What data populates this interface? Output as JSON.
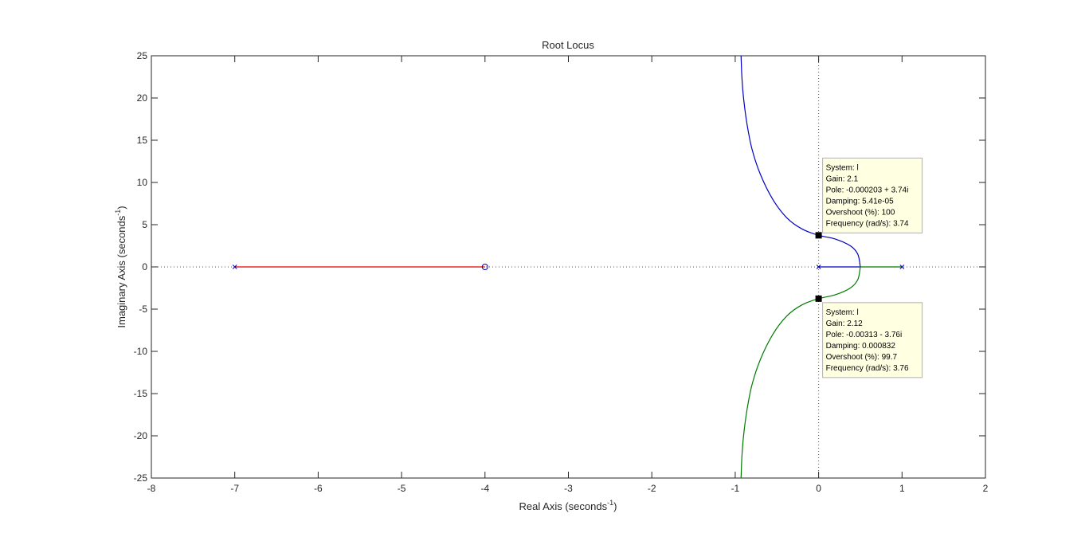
{
  "chart_data": {
    "type": "line",
    "title": "Root Locus",
    "xlabel": "Real Axis (seconds",
    "ylabel": "Imaginary Axis (seconds",
    "unit_superscript": "-1",
    "xlim": [
      -8,
      2
    ],
    "ylim": [
      -25,
      25
    ],
    "xticks": [
      -8,
      -7,
      -6,
      -5,
      -4,
      -3,
      -2,
      -1,
      0,
      1,
      2
    ],
    "yticks": [
      25,
      20,
      15,
      10,
      5,
      0,
      -5,
      -10,
      -15,
      -20,
      -25
    ],
    "grid": false,
    "reference_lines": {
      "x": 0,
      "y": 0,
      "style": "dotted"
    },
    "colors": {
      "red": "#e00000",
      "blue": "#0000c0",
      "green": "#007a00",
      "axis": "#262626"
    },
    "poles": [
      [
        -7,
        0
      ],
      [
        0,
        0
      ],
      [
        1,
        0
      ]
    ],
    "zeros": [
      [
        -4,
        0
      ]
    ],
    "series": [
      {
        "color": "#e00000",
        "x": [
          -7,
          -4
        ],
        "y": [
          0,
          0
        ]
      },
      {
        "color": "#0000c0",
        "x": [
          0,
          0.5,
          0.47,
          0.38,
          0.2,
          0.0,
          -0.2,
          -0.38,
          -0.55,
          -0.7,
          -0.8,
          -0.86,
          -0.9,
          -0.92,
          -0.93
        ],
        "y": [
          0,
          0,
          1.5,
          2.5,
          3.3,
          3.74,
          4.5,
          5.8,
          8.0,
          11.0,
          14.0,
          17.0,
          20.0,
          22.5,
          25
        ]
      },
      {
        "color": "#007a00",
        "x": [
          1,
          0.5,
          0.47,
          0.38,
          0.2,
          0.0,
          -0.2,
          -0.38,
          -0.55,
          -0.7,
          -0.8,
          -0.86,
          -0.9,
          -0.92,
          -0.93
        ],
        "y": [
          0,
          0,
          -1.5,
          -2.5,
          -3.3,
          -3.76,
          -4.5,
          -5.8,
          -8.0,
          -11.0,
          -14.0,
          -17.0,
          -20.0,
          -22.5,
          -25
        ]
      }
    ],
    "datatips": [
      {
        "point": [
          0,
          3.74
        ],
        "lines": [
          "System: l",
          "Gain: 2.1",
          "Pole: -0.000203 + 3.74i",
          "Damping: 5.41e-05",
          "Overshoot (%): 100",
          "Frequency (rad/s): 3.74"
        ]
      },
      {
        "point": [
          0,
          -3.76
        ],
        "lines": [
          "System: l",
          "Gain: 2.12",
          "Pole: -0.00313 - 3.76i",
          "Damping: 0.000832",
          "Overshoot (%): 99.7",
          "Frequency (rad/s): 3.76"
        ]
      }
    ]
  }
}
